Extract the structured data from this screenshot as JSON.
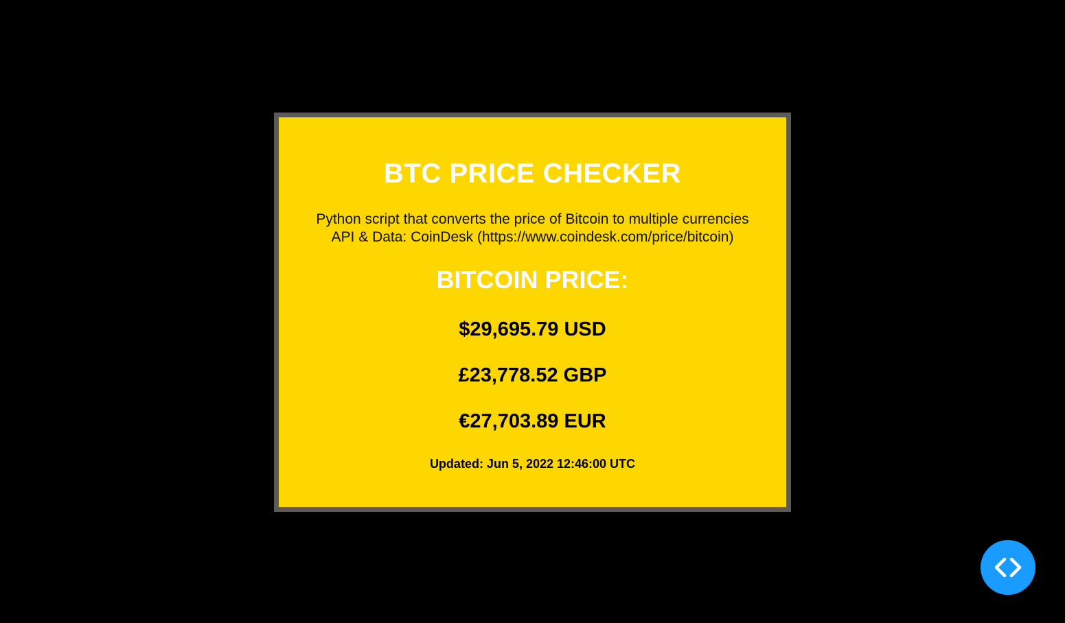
{
  "card": {
    "title": "BTC PRICE CHECKER",
    "description_line1": "Python script that converts the price of Bitcoin to multiple currencies",
    "description_line2": "API & Data: CoinDesk (https://www.coindesk.com/price/bitcoin)",
    "price_heading": "BITCOIN PRICE:",
    "prices": {
      "usd": "$29,695.79 USD",
      "gbp": "£23,778.52 GBP",
      "eur": "€27,703.89 EUR"
    },
    "updated": "Updated: Jun 5, 2022 12:46:00 UTC"
  },
  "colors": {
    "page_background": "#000000",
    "card_background": "#FFD700",
    "card_border": "#5a5a5a",
    "heading_text": "#ffffff",
    "body_text": "#000000",
    "code_button": "#1a9bff"
  },
  "code_button": {
    "icon": "code-brackets-icon"
  }
}
